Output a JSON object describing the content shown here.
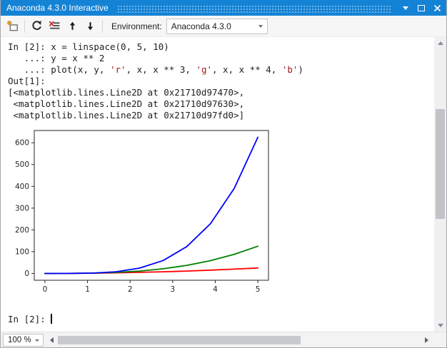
{
  "window": {
    "title": "Anaconda 4.3.0 Interactive"
  },
  "toolbar": {
    "buttons": [
      {
        "name": "new-interactive-window",
        "icon": "new-window-icon"
      },
      {
        "name": "restart-kernel",
        "icon": "restart-icon"
      },
      {
        "name": "clear-screen",
        "icon": "clear-screen-icon"
      },
      {
        "name": "history-previous",
        "icon": "arrow-up-icon"
      },
      {
        "name": "history-next",
        "icon": "arrow-down-icon"
      }
    ],
    "environment_label": "Environment:",
    "environment_value": "Anaconda 4.3.0"
  },
  "console": {
    "colors": {
      "default": "#1e1e1e",
      "string": "#a31515"
    },
    "lines": [
      [
        {
          "t": "In [2]: x = linspace(0, 5, 10)"
        }
      ],
      [
        {
          "t": "   ...: y = x ** 2"
        }
      ],
      [
        {
          "t": "   ...: plot(x, y, "
        },
        {
          "t": "'r'",
          "c": "string"
        },
        {
          "t": ", x, x ** 3, "
        },
        {
          "t": "'g'",
          "c": "string"
        },
        {
          "t": ", x, x ** 4, "
        },
        {
          "t": "'b'",
          "c": "string"
        },
        {
          "t": ")"
        }
      ],
      [
        {
          "t": "Out[1]:"
        }
      ],
      [
        {
          "t": "[<matplotlib.lines.Line2D at 0x21710d97470>,"
        }
      ],
      [
        {
          "t": " <matplotlib.lines.Line2D at 0x21710d97630>,"
        }
      ],
      [
        {
          "t": " <matplotlib.lines.Line2D at 0x21710d97fd0>]"
        }
      ]
    ]
  },
  "prompt": {
    "text": "In [2]: "
  },
  "statusbar": {
    "zoom_value": "100 %"
  },
  "chart_data": {
    "type": "line",
    "title": "",
    "xlabel": "",
    "ylabel": "",
    "grid": false,
    "legend": null,
    "x": [
      0,
      0.5556,
      1.1111,
      1.6667,
      2.2222,
      2.7778,
      3.3333,
      3.8889,
      4.4444,
      5.0
    ],
    "series": [
      {
        "name": "x ** 2",
        "color": "#ff0000",
        "values": [
          0,
          0.31,
          1.23,
          2.78,
          4.94,
          7.72,
          11.11,
          15.12,
          19.75,
          25
        ]
      },
      {
        "name": "x ** 3",
        "color": "#008000",
        "values": [
          0,
          0.17,
          1.37,
          4.63,
          10.97,
          21.43,
          37.04,
          58.81,
          87.79,
          125
        ]
      },
      {
        "name": "x ** 4",
        "color": "#0000ff",
        "values": [
          0,
          0.1,
          1.52,
          7.72,
          24.39,
          59.54,
          123.46,
          228.72,
          390.18,
          625
        ]
      }
    ],
    "xticks": [
      0,
      1,
      2,
      3,
      4,
      5
    ],
    "yticks": [
      0,
      100,
      200,
      300,
      400,
      500,
      600
    ],
    "xlim": [
      -0.25,
      5.25
    ],
    "ylim": [
      -31.25,
      656.25
    ]
  }
}
